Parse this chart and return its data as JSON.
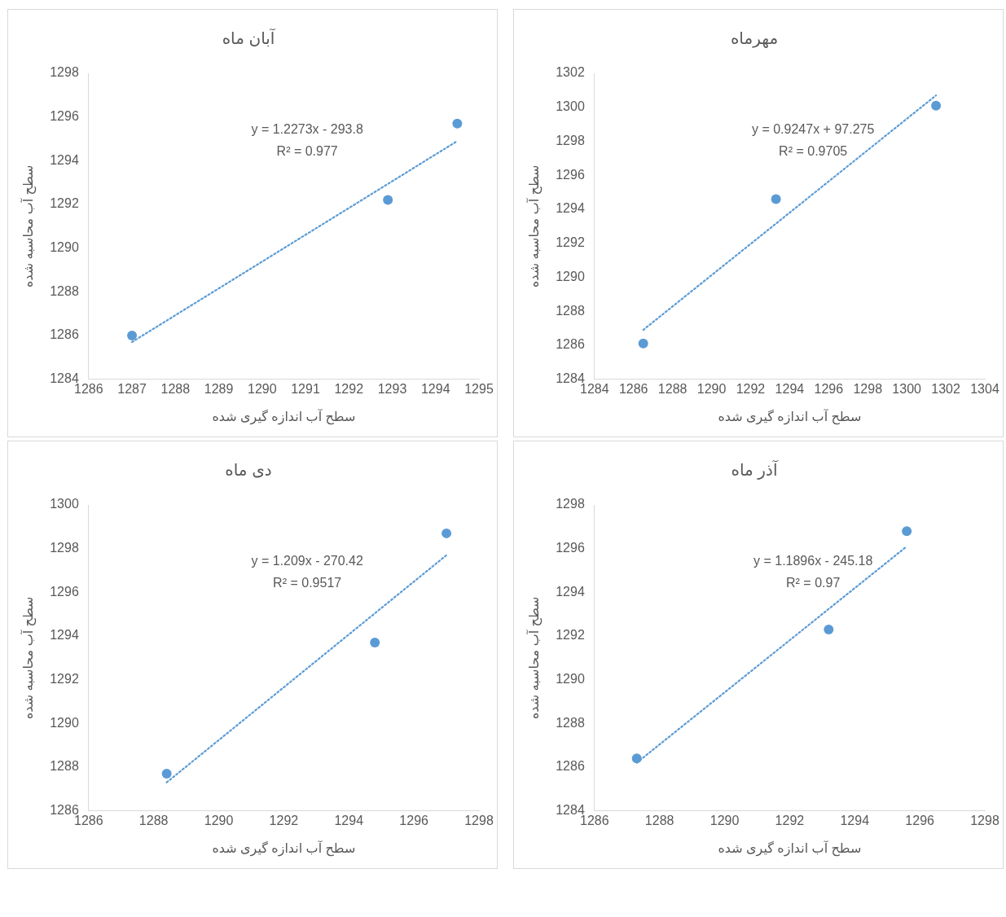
{
  "chart_data": [
    {
      "type": "scatter",
      "title": "آبان ماه",
      "xlabel": "سطح آب اندازه گیری شده",
      "ylabel": "سطح آب محاسبه شده",
      "xlim": [
        1286,
        1295
      ],
      "xticks": [
        1286,
        1287,
        1288,
        1289,
        1290,
        1291,
        1292,
        1293,
        1294,
        1295
      ],
      "ylim": [
        1284,
        1298
      ],
      "yticks": [
        1284,
        1286,
        1288,
        1290,
        1292,
        1294,
        1296,
        1298
      ],
      "grid": false,
      "legend": false,
      "annotations": [
        "y = 1.2273x - 293.8",
        "R² = 0.977"
      ],
      "series": [
        {
          "type": "scatter",
          "color": "#5b9bd5",
          "marker": "circle",
          "x": [
            1287,
            1292.9,
            1294.5
          ],
          "values": [
            1286,
            1292.2,
            1295.7
          ]
        },
        {
          "type": "line",
          "color": "#5b9bd5",
          "marker": "none",
          "line_style": "dotted",
          "x": [
            1287,
            1294.5
          ],
          "values": [
            1285.7,
            1294.9
          ]
        }
      ]
    },
    {
      "type": "scatter",
      "title": "مهرماه",
      "xlabel": "سطح آب اندازه گیری شده",
      "ylabel": "سطح آب محاسبه شده",
      "xlim": [
        1284,
        1304
      ],
      "xticks": [
        1284,
        1286,
        1288,
        1290,
        1292,
        1294,
        1296,
        1298,
        1300,
        1302,
        1304
      ],
      "ylim": [
        1284,
        1302
      ],
      "yticks": [
        1284,
        1286,
        1288,
        1290,
        1292,
        1294,
        1296,
        1298,
        1300,
        1302
      ],
      "grid": false,
      "legend": false,
      "annotations": [
        "y = 0.9247x + 97.275",
        "R² = 0.9705"
      ],
      "series": [
        {
          "type": "scatter",
          "color": "#5b9bd5",
          "marker": "circle",
          "x": [
            1286.5,
            1293.3,
            1301.5
          ],
          "values": [
            1286.1,
            1294.6,
            1300.1
          ]
        },
        {
          "type": "line",
          "color": "#5b9bd5",
          "marker": "none",
          "line_style": "dotted",
          "x": [
            1286.5,
            1301.5
          ],
          "values": [
            1286.9,
            1300.7
          ]
        }
      ]
    },
    {
      "type": "scatter",
      "title": "دی ماه",
      "xlabel": "سطح آب اندازه گیری شده",
      "ylabel": "سطح آب محاسبه شده",
      "xlim": [
        1286,
        1298
      ],
      "xticks": [
        1286,
        1288,
        1290,
        1292,
        1294,
        1296,
        1298
      ],
      "ylim": [
        1286,
        1300
      ],
      "yticks": [
        1286,
        1288,
        1290,
        1292,
        1294,
        1296,
        1298,
        1300
      ],
      "grid": false,
      "legend": false,
      "annotations": [
        "y = 1.209x - 270.42",
        "R² = 0.9517"
      ],
      "series": [
        {
          "type": "scatter",
          "color": "#5b9bd5",
          "marker": "circle",
          "x": [
            1288.4,
            1294.8,
            1297
          ],
          "values": [
            1287.7,
            1293.7,
            1298.7
          ]
        },
        {
          "type": "line",
          "color": "#5b9bd5",
          "marker": "none",
          "line_style": "dotted",
          "x": [
            1288.4,
            1297
          ],
          "values": [
            1287.3,
            1297.7
          ]
        }
      ]
    },
    {
      "type": "scatter",
      "title": "آذر ماه",
      "xlabel": "سطح آب اندازه گیری شده",
      "ylabel": "سطح آب محاسبه شده",
      "xlim": [
        1286,
        1298
      ],
      "xticks": [
        1286,
        1288,
        1290,
        1292,
        1294,
        1296,
        1298
      ],
      "ylim": [
        1284,
        1298
      ],
      "yticks": [
        1284,
        1286,
        1288,
        1290,
        1292,
        1294,
        1296,
        1298
      ],
      "grid": false,
      "legend": false,
      "annotations": [
        "y = 1.1896x - 245.18",
        "R² = 0.97"
      ],
      "series": [
        {
          "type": "scatter",
          "color": "#5b9bd5",
          "marker": "circle",
          "x": [
            1287.3,
            1293.2,
            1295.6
          ],
          "values": [
            1286.4,
            1292.3,
            1296.8
          ]
        },
        {
          "type": "line",
          "color": "#5b9bd5",
          "marker": "none",
          "line_style": "dotted",
          "x": [
            1287.3,
            1295.6
          ],
          "values": [
            1286.2,
            1296.1
          ]
        }
      ]
    }
  ]
}
